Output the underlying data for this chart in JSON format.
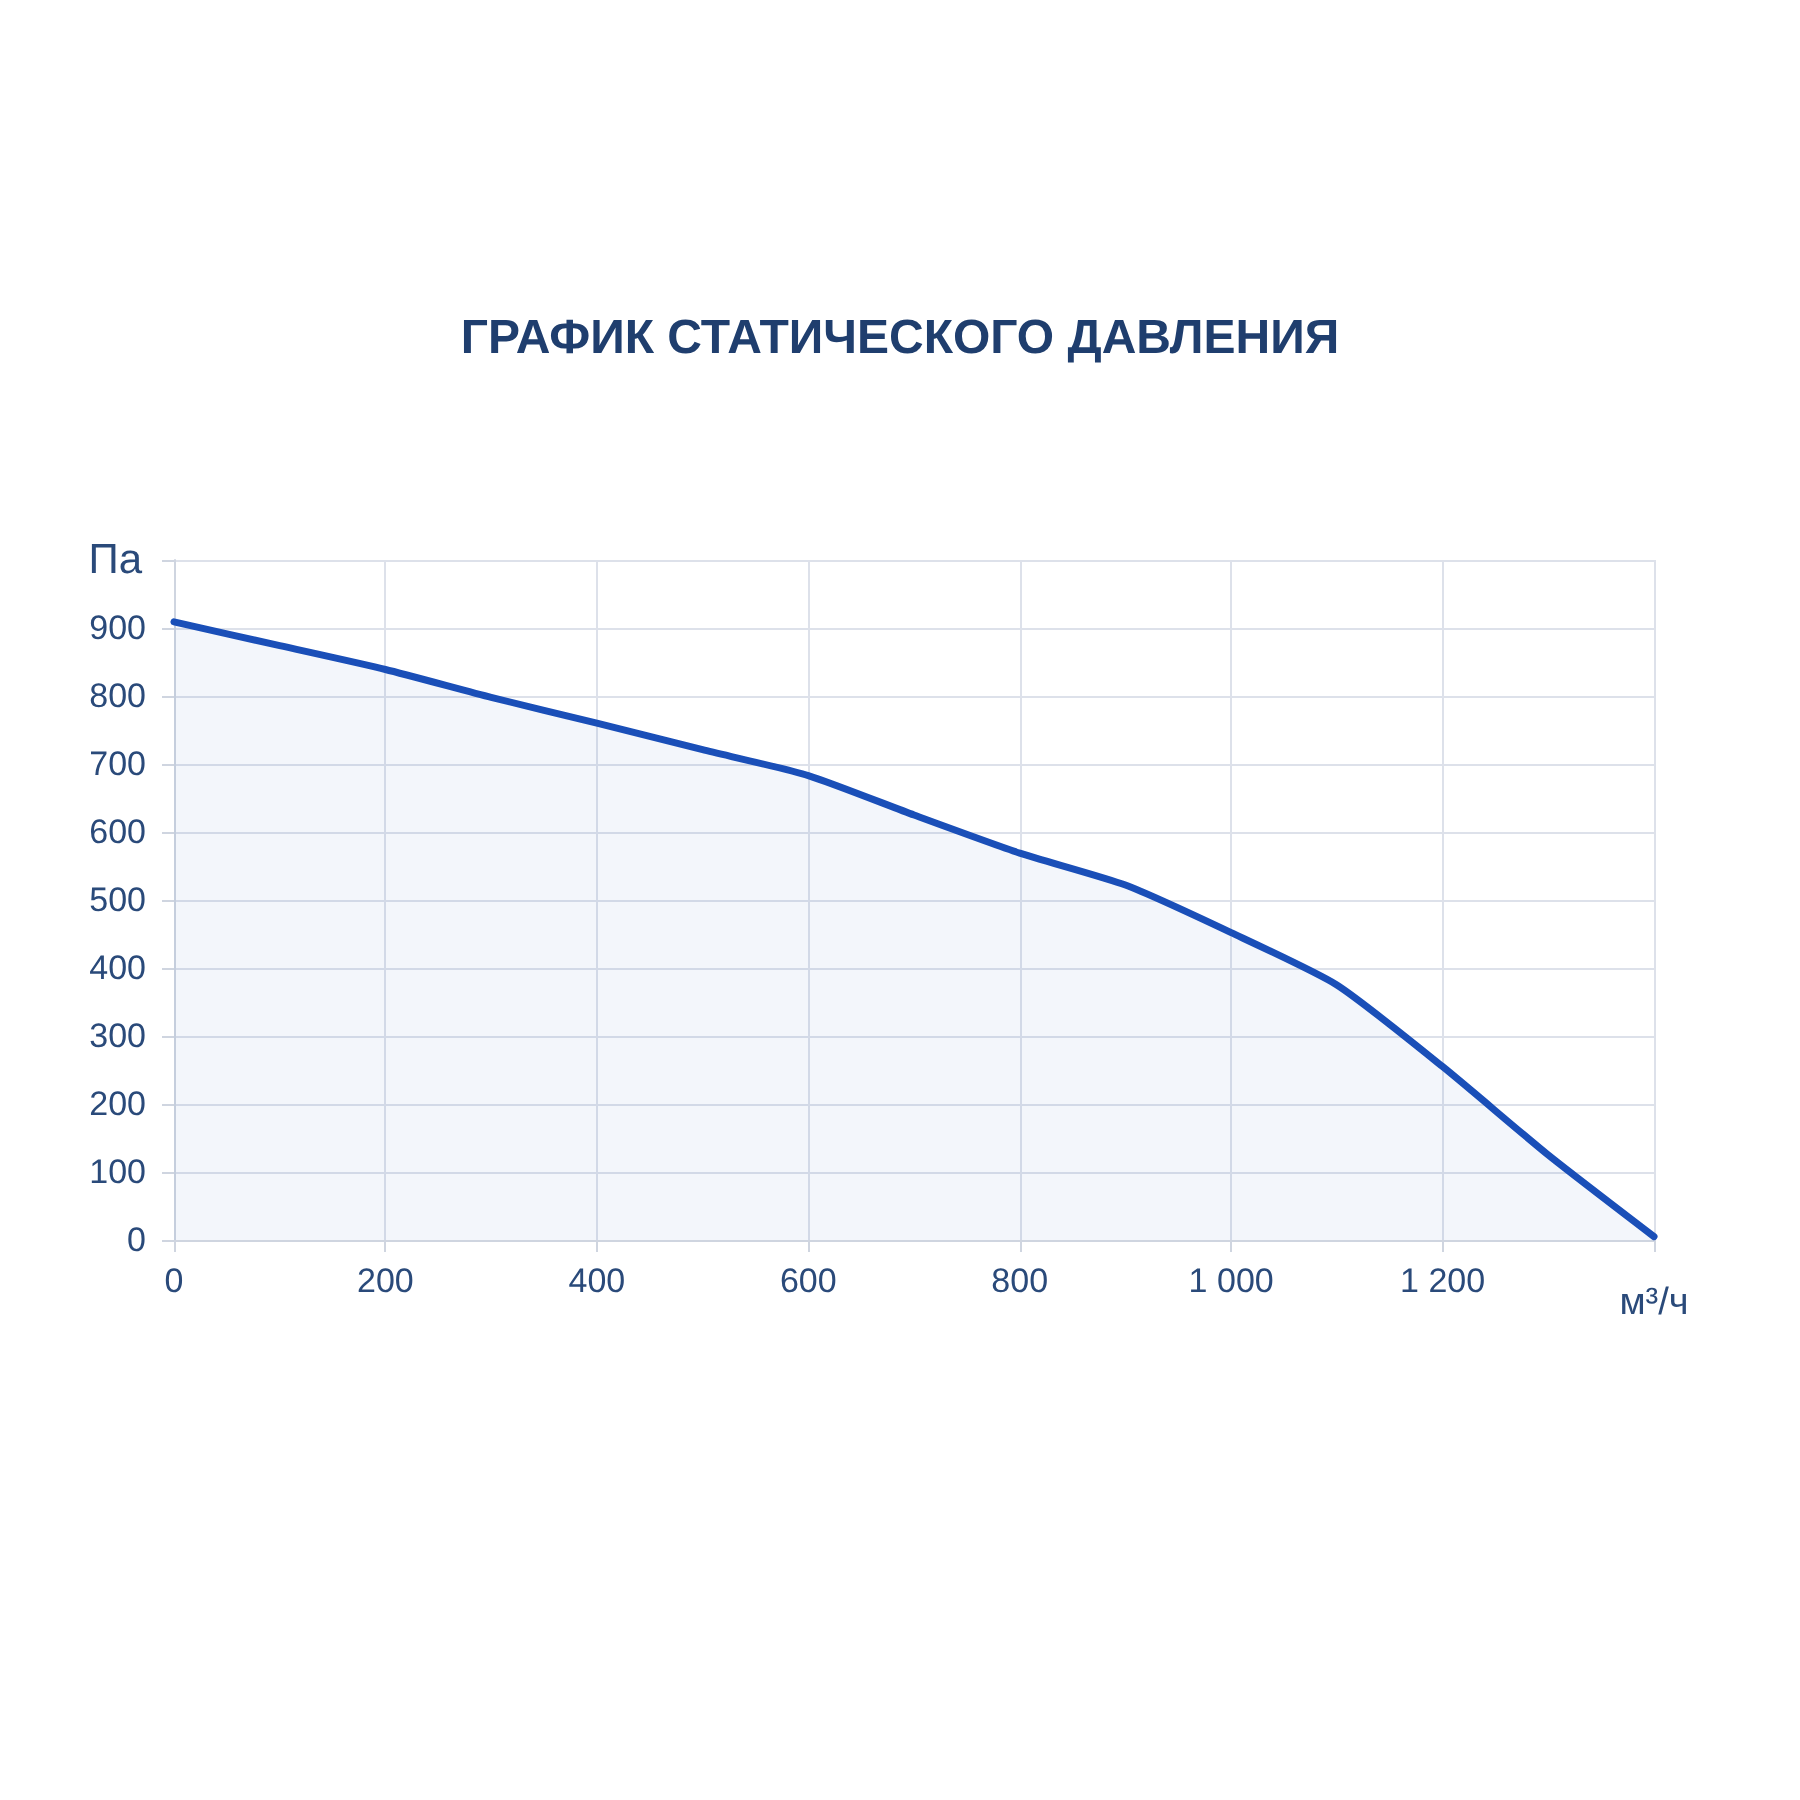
{
  "chart_data": {
    "type": "area",
    "title": "ГРАФИК СТАТИЧЕСКОГО ДАВЛЕНИЯ",
    "xlabel": "м³/ч",
    "ylabel": "Па",
    "x": [
      0,
      100,
      200,
      300,
      400,
      500,
      600,
      700,
      800,
      900,
      1000,
      1100,
      1200,
      1300,
      1400
    ],
    "series": [
      {
        "color": "#1a4fb8",
        "values": [
          909,
          874,
          839,
          798,
          760,
          721,
          683,
          625,
          569,
          522,
          452,
          375,
          255,
          125,
          5
        ]
      }
    ],
    "xlim": [
      0,
      1400
    ],
    "xticks": [
      0,
      200,
      400,
      600,
      800,
      {
        "value": 1000,
        "label": "1 000"
      },
      {
        "value": 1200,
        "label": "1 200"
      },
      {
        "value": 1400,
        "label": null
      }
    ],
    "ylim": [
      0,
      1000
    ],
    "yticks": [
      0,
      100,
      200,
      300,
      400,
      500,
      600,
      700,
      800,
      900,
      {
        "value": 1000,
        "label": null
      }
    ],
    "grid": true,
    "marker": "none",
    "line_style": "solid"
  }
}
